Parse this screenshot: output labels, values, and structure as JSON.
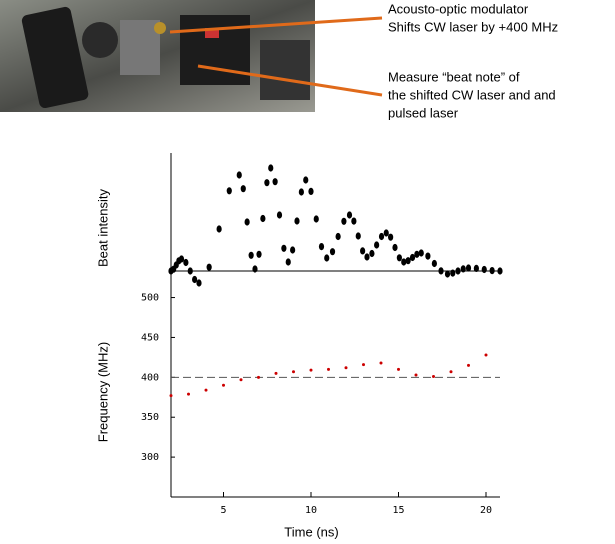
{
  "annotations": [
    {
      "lines": [
        "Acousto-optic modulator",
        "Shifts CW laser by +400 MHz"
      ]
    },
    {
      "lines": [
        "Measure “beat note” of",
        "the shifted CW laser and and",
        "pulsed laser"
      ]
    }
  ],
  "chart_data": [
    {
      "type": "scatter",
      "ylabel": "Beat intensity",
      "color": "#000000",
      "x": [
        2.0,
        2.15,
        2.3,
        2.45,
        2.6,
        2.85,
        3.1,
        3.35,
        3.6,
        4.18,
        4.75,
        5.33,
        5.9,
        6.13,
        6.35,
        6.58,
        6.8,
        7.03,
        7.25,
        7.48,
        7.7,
        7.95,
        8.2,
        8.45,
        8.7,
        8.95,
        9.2,
        9.45,
        9.7,
        10.0,
        10.3,
        10.6,
        10.9,
        11.23,
        11.55,
        11.88,
        12.2,
        12.45,
        12.7,
        12.95,
        13.2,
        13.48,
        13.75,
        14.03,
        14.3,
        14.55,
        14.8,
        15.05,
        15.3,
        15.55,
        15.8,
        16.05,
        16.3,
        16.68,
        17.05,
        17.43,
        17.8,
        18.1,
        18.4,
        18.7,
        19.0,
        19.45,
        19.9,
        20.35,
        20.8
      ],
      "values": [
        0,
        1.8,
        6,
        10.2,
        12,
        8.5,
        0,
        -8.5,
        -12,
        3.8,
        42,
        80.2,
        96,
        82.3,
        49,
        15.7,
        2,
        16.7,
        52.5,
        88.3,
        103,
        89.3,
        56,
        22.7,
        9,
        21,
        50,
        79,
        91,
        79.6,
        52,
        24.4,
        13,
        19.3,
        34.5,
        49.7,
        56,
        49.9,
        35,
        20.1,
        14,
        17.5,
        26,
        34.5,
        38,
        33.8,
        23.5,
        13.2,
        9,
        10.3,
        13.5,
        16.7,
        18,
        14.9,
        7.5,
        0.1,
        -3,
        -2.1,
        0,
        2.1,
        3,
        2.6,
        1.5,
        0.4,
        0
      ],
      "xlim": [
        2,
        20.8
      ],
      "ylim": [
        -20,
        118
      ]
    },
    {
      "type": "scatter",
      "xlabel": "Time (ns)",
      "ylabel": "Frequency (MHz)",
      "color": "#cc0000",
      "x": [
        2,
        3,
        4,
        5,
        6,
        7,
        8,
        9,
        10,
        11,
        12,
        13,
        14,
        15,
        16,
        17,
        18,
        19,
        20
      ],
      "values": [
        377,
        379,
        384,
        390,
        397,
        400,
        405,
        407,
        409,
        410,
        412,
        416,
        418,
        410,
        403,
        401,
        407,
        415,
        428
      ],
      "xlim": [
        2,
        20.8
      ],
      "ylim": [
        250,
        522
      ],
      "xticks": [
        5,
        10,
        15,
        20
      ],
      "yticks": [
        300,
        350,
        400,
        450,
        500
      ],
      "ref_line": 400
    }
  ]
}
